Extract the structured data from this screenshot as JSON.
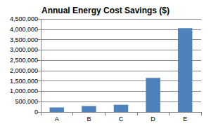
{
  "chart_data": {
    "type": "bar",
    "title": "Annual Energy Cost Savings ($)",
    "categories": [
      "A",
      "B",
      "C",
      "D",
      "E"
    ],
    "values": [
      220000,
      290000,
      350000,
      1650000,
      4050000
    ],
    "color": "#4f81bd",
    "ylim": [
      0,
      4500000
    ],
    "yticks": [
      0,
      {
        "value": 500000,
        "label": "500,000"
      },
      {
        "value": 1000000,
        "label": "1,000,000"
      },
      {
        "value": 1500000,
        "label": "1,500,000"
      },
      {
        "value": 2000000,
        "label": "2,000,000"
      },
      {
        "value": 2500000,
        "label": "2,500,000"
      },
      {
        "value": 3000000,
        "label": "3,000,000"
      },
      {
        "value": 3500000,
        "label": "3,500,000"
      },
      {
        "value": 4000000,
        "label": "4,000,000"
      },
      {
        "value": 4500000,
        "label": "4,500,000"
      }
    ],
    "grid": true
  }
}
